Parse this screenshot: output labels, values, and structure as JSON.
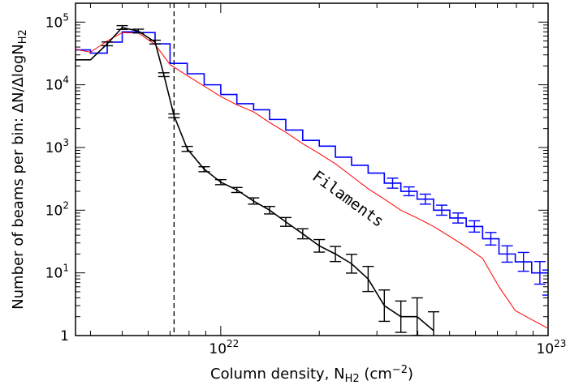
{
  "chart_data": {
    "type": "line",
    "xlabel": "Column density, N",
    "xlabel_sub": "H2",
    "xlabel_unit_open": " (cm",
    "xlabel_unit_exp": "−2",
    "xlabel_unit_close": ")",
    "ylabel": "Number of beams per bin: ΔN/ΔlogN",
    "ylabel_sub": "H2",
    "xscale": "log",
    "yscale": "log",
    "xlim": [
      3.6e+21,
      1e+23
    ],
    "ylim": [
      1,
      200000
    ],
    "x_ticks": [
      {
        "value": 1e+22,
        "base": "10",
        "exp": "22"
      },
      {
        "value": 1e+23,
        "base": "10",
        "exp": "23"
      }
    ],
    "y_ticks": [
      {
        "value": 1,
        "label": "1"
      },
      {
        "value": 10,
        "base": "10",
        "exp": "1"
      },
      {
        "value": 100,
        "base": "10",
        "exp": "2"
      },
      {
        "value": 1000,
        "base": "10",
        "exp": "3"
      },
      {
        "value": 10000,
        "base": "10",
        "exp": "4"
      },
      {
        "value": 100000,
        "base": "10",
        "exp": "5"
      }
    ],
    "reference_line": {
      "x": 7.2e+21,
      "style": "dashed"
    },
    "annotation": {
      "text": "Filaments",
      "x": 2.4e+22,
      "y": 130,
      "rotation": 36
    },
    "series": [
      {
        "color": "#0000ff",
        "style": "step",
        "x": [
          3.6e+21,
          4e+21,
          4.5e+21,
          5e+21,
          5.6e+21,
          6.3e+21,
          7e+21,
          7.9e+21,
          8.9e+21,
          1e+22,
          1.12e+22,
          1.26e+22,
          1.41e+22,
          1.58e+22,
          1.78e+22,
          2e+22,
          2.24e+22,
          2.51e+22,
          2.82e+22,
          3.16e+22,
          3.55e+22,
          3.98e+22,
          4.47e+22,
          5.01e+22,
          5.62e+22,
          6.31e+22,
          7.08e+22,
          7.94e+22,
          8.91e+22,
          1e+23
        ],
        "y": [
          36000,
          32000,
          48000,
          70000,
          68000,
          45000,
          22000,
          15000,
          10000,
          7000,
          5000,
          4000,
          2800,
          1900,
          1300,
          1050,
          700,
          520,
          390,
          270,
          200,
          150,
          100,
          75,
          55,
          35,
          20,
          15,
          10,
          7
        ],
        "errors": [
          0,
          0,
          0,
          0,
          0,
          0,
          0,
          0,
          0,
          0,
          0,
          0,
          0,
          0,
          0,
          0,
          0,
          0,
          0,
          0.08,
          0.07,
          0.08,
          0.08,
          0.08,
          0.09,
          0.1,
          0.13,
          0.15,
          0.18,
          0.2
        ]
      },
      {
        "color": "#ff0000",
        "style": "line",
        "x": [
          3.6e+21,
          4e+21,
          4.5e+21,
          5e+21,
          5.6e+21,
          6.3e+21,
          7e+21,
          7.9e+21,
          8.9e+21,
          1e+22,
          1.12e+22,
          1.26e+22,
          1.41e+22,
          1.58e+22,
          1.78e+22,
          2e+22,
          2.24e+22,
          2.51e+22,
          2.82e+22,
          3.16e+22,
          3.55e+22,
          3.98e+22,
          4.47e+22,
          5.01e+22,
          5.62e+22,
          6.31e+22,
          7.08e+22,
          7.94e+22,
          8.91e+22,
          1e+23
        ],
        "y": [
          37000,
          33000,
          50000,
          68000,
          67000,
          44000,
          21000,
          14000,
          9500,
          6500,
          4800,
          3700,
          2500,
          1750,
          1150,
          800,
          550,
          350,
          220,
          150,
          100,
          75,
          55,
          38,
          26,
          17,
          6,
          2.5,
          1.8,
          1.3
        ]
      },
      {
        "color": "#000000",
        "style": "line",
        "x": [
          3.6e+21,
          4e+21,
          4.5e+21,
          5e+21,
          5.6e+21,
          6.3e+21,
          6.7e+21,
          7.2e+21,
          7.9e+21,
          8.9e+21,
          1e+22,
          1.12e+22,
          1.26e+22,
          1.41e+22,
          1.58e+22,
          1.78e+22,
          2e+22,
          2.24e+22,
          2.51e+22,
          2.82e+22,
          3.16e+22,
          3.55e+22,
          3.98e+22,
          4.47e+22
        ],
        "y": [
          25000,
          25000,
          45000,
          82000,
          72000,
          48000,
          14500,
          3200,
          950,
          450,
          280,
          210,
          140,
          100,
          65,
          42,
          27,
          20,
          14,
          8,
          3,
          2,
          2,
          1.2
        ],
        "errors": [
          0,
          0,
          0.03,
          0.03,
          0.03,
          0.03,
          0.03,
          0.03,
          0.04,
          0.04,
          0.04,
          0.04,
          0.05,
          0.06,
          0.07,
          0.08,
          0.1,
          0.12,
          0.15,
          0.2,
          0.25,
          0.25,
          0.3,
          0.3
        ]
      }
    ]
  }
}
